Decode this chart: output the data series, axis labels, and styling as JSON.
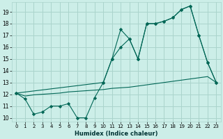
{
  "xlabel": "Humidex (Indice chaleur)",
  "bg_color": "#cceee8",
  "grid_color": "#aad4cc",
  "line_color": "#006655",
  "xlim": [
    -0.5,
    23.5
  ],
  "ylim": [
    9.7,
    19.8
  ],
  "yticks": [
    10,
    11,
    12,
    13,
    14,
    15,
    16,
    17,
    18,
    19
  ],
  "xticks": [
    0,
    1,
    2,
    3,
    4,
    5,
    6,
    7,
    8,
    9,
    10,
    11,
    12,
    13,
    14,
    15,
    16,
    17,
    18,
    19,
    20,
    21,
    22,
    23
  ],
  "line1_x": [
    0,
    1,
    2,
    3,
    4,
    5,
    6,
    7,
    8,
    9,
    10,
    11,
    12,
    13,
    14,
    15,
    16,
    17,
    18,
    19,
    20,
    21,
    22,
    23
  ],
  "line1_y": [
    12.1,
    11.6,
    10.3,
    10.5,
    11.0,
    11.0,
    11.2,
    10.0,
    10.0,
    11.7,
    13.0,
    15.0,
    17.5,
    16.7,
    15.0,
    18.0,
    18.0,
    18.2,
    18.5,
    19.2,
    19.5,
    17.0,
    14.7,
    13.0
  ],
  "line2_x": [
    0,
    1,
    2,
    3,
    4,
    5,
    6,
    7,
    8,
    9,
    10,
    11,
    12,
    13,
    14,
    15,
    16,
    17,
    18,
    19,
    20,
    21,
    22,
    23
  ],
  "line2_y": [
    12.1,
    11.85,
    11.95,
    12.0,
    12.05,
    12.1,
    12.2,
    12.25,
    12.3,
    12.35,
    12.4,
    12.5,
    12.55,
    12.6,
    12.7,
    12.8,
    12.9,
    13.0,
    13.1,
    13.2,
    13.3,
    13.4,
    13.5,
    13.0
  ],
  "line3_x": [
    0,
    10,
    11,
    12,
    13,
    14,
    15,
    16,
    17,
    18,
    19,
    20,
    21,
    22,
    23
  ],
  "line3_y": [
    12.1,
    13.0,
    15.0,
    16.0,
    16.7,
    15.0,
    18.0,
    18.0,
    18.2,
    18.5,
    19.2,
    19.5,
    17.0,
    14.7,
    13.0
  ]
}
